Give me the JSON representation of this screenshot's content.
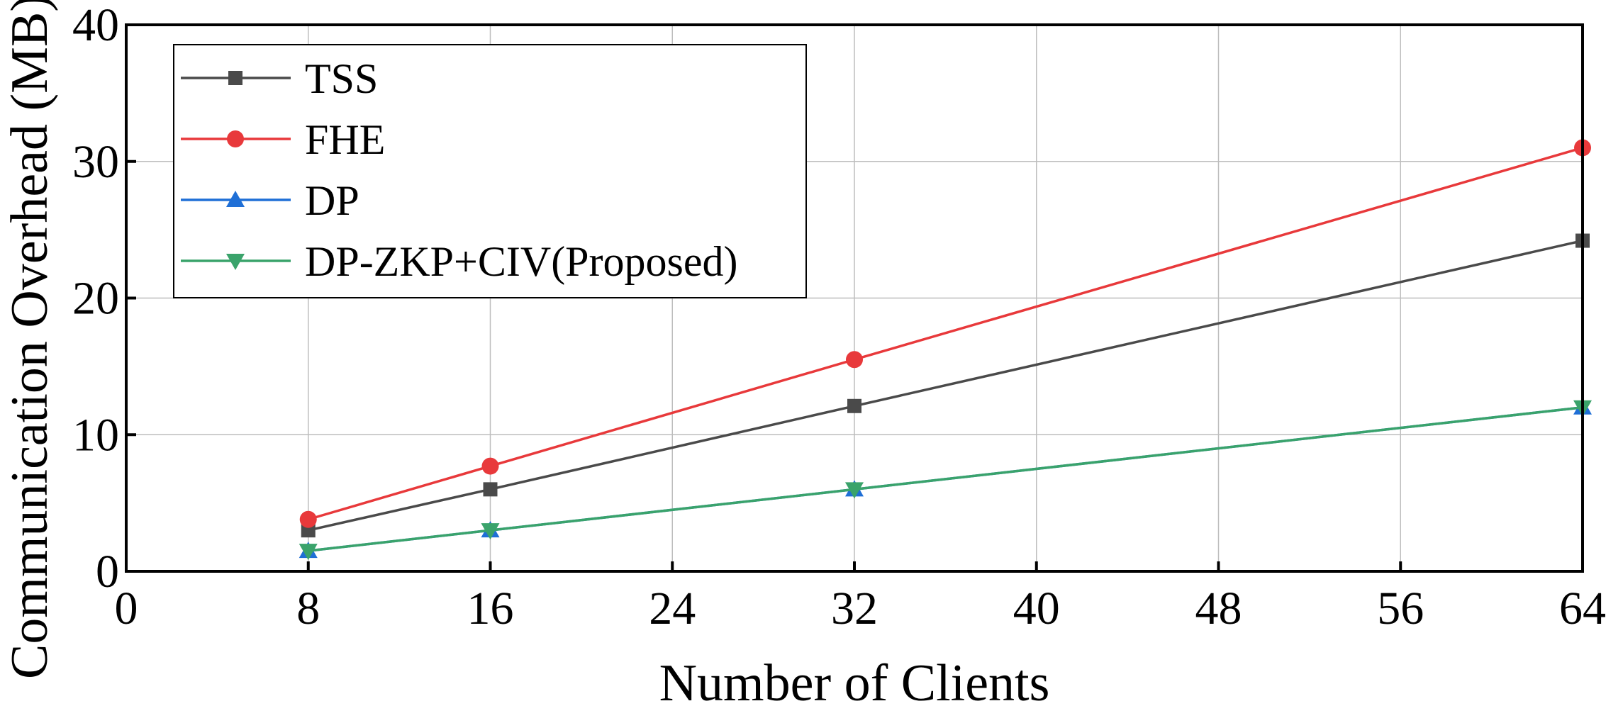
{
  "chart_data": {
    "type": "line",
    "title": "",
    "xlabel": "Number of Clients",
    "ylabel": "Communication Overhead (MB)",
    "x": [
      8,
      16,
      32,
      64
    ],
    "xlim": [
      0,
      64
    ],
    "ylim": [
      0,
      40
    ],
    "xticks": [
      0,
      8,
      16,
      24,
      32,
      40,
      48,
      56,
      64
    ],
    "yticks": [
      0,
      10,
      20,
      30,
      40
    ],
    "grid": true,
    "legend_position": "top-left",
    "series": [
      {
        "name": "TSS",
        "marker": "square",
        "color": "#4a4a4a",
        "values": [
          3.0,
          6.0,
          12.1,
          24.2
        ]
      },
      {
        "name": "FHE",
        "marker": "circle",
        "color": "#e8393b",
        "values": [
          3.8,
          7.7,
          15.5,
          31.0
        ]
      },
      {
        "name": "DP",
        "marker": "triangle-up",
        "color": "#1f6fd6",
        "values": [
          1.5,
          3.0,
          6.0,
          12.0
        ]
      },
      {
        "name": "DP-ZKP+CIV(Proposed)",
        "marker": "triangle-down",
        "color": "#3aa36b",
        "values": [
          1.5,
          3.0,
          6.0,
          12.0
        ]
      }
    ]
  }
}
